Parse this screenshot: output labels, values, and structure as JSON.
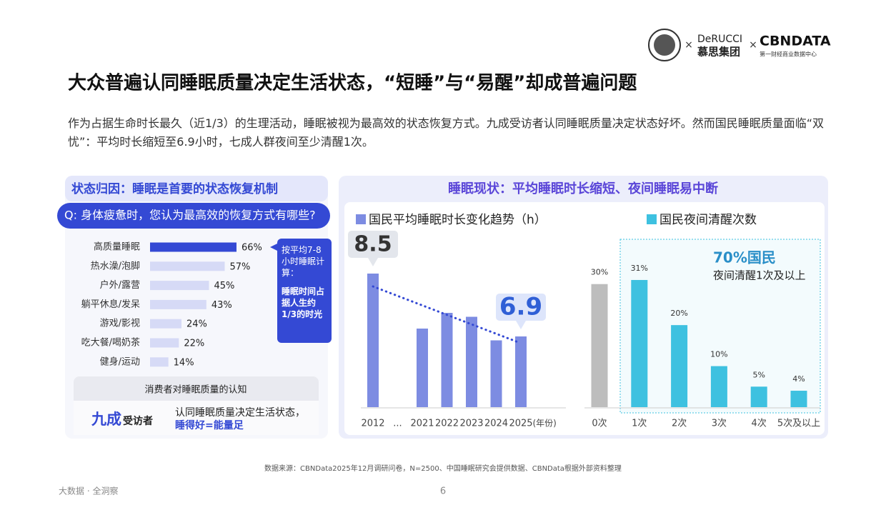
{
  "header": {
    "brand1": "DeRUCCI",
    "brand1_cn": "慕思集团",
    "separator": "×",
    "brand2": "CBNDATA",
    "brand2_sub": "第一财经商业数据中心",
    "title": "大众普遍认同睡眠质量决定生活状态，“短睡”与“易醒”却成普遍问题",
    "intro": "作为占据生命时长最久（近1/3）的生理活动，睡眠被视为最高效的状态恢复方式。九成受访者认同睡眠质量决定状态好坏。然而国民睡眠质量面临“双忧”：平均时长缩短至6.9小时，七成人群夜间至少清醒1次。"
  },
  "left_panel": {
    "heading": "状态归因：睡眠是首要的状态恢复机制",
    "note": [
      "按平均7-8小时睡眠计算：",
      "睡眠时间占据人生约1/3的时光"
    ],
    "summary": {
      "title": "消费者对睡眠质量的认知",
      "big": "九成",
      "big_suffix": "受访者",
      "line1": "认同睡眠质量决定生活状态，",
      "line2": "睡得好=能量足"
    }
  },
  "right_panel": {
    "heading": "睡眠现状：平均睡眠时长缩短、夜间睡眠易中断"
  },
  "chart_data": [
    {
      "type": "hbar",
      "title": "Q: 身体疲惫时，您认为最高效的恢复方式有哪些?",
      "categories": [
        "高质量睡眠",
        "热水澡/泡脚",
        "户外/露营",
        "躺平休息/发呆",
        "游戏/影视",
        "吃大餐/喝奶茶",
        "健身/运动"
      ],
      "values": [
        66,
        57,
        45,
        43,
        24,
        22,
        14
      ],
      "value_labels": [
        "66%",
        "57%",
        "45%",
        "43%",
        "24%",
        "22%",
        "14%"
      ],
      "colors": [
        "#3449d4",
        "#d6daf6",
        "#d6daf6",
        "#d6daf6",
        "#d6daf6",
        "#d6daf6",
        "#d6daf6"
      ]
    },
    {
      "type": "bar",
      "title": "国民平均睡眠时长变化趋势（h）",
      "categories": [
        "2012",
        "...",
        "2021",
        "2022",
        "2023",
        "2024",
        "2025"
      ],
      "values": [
        8.5,
        null,
        7.1,
        7.5,
        7.4,
        6.8,
        6.9
      ],
      "value_labels": [
        "8.5",
        null,
        null,
        null,
        null,
        null,
        "6.9"
      ],
      "x_unit": "(年份)",
      "color": "#7d8ce2",
      "ylim": [
        5.1,
        9
      ],
      "trend_line": true
    },
    {
      "type": "bar",
      "title": "国民夜间清醒次数",
      "categories": [
        "0次",
        "1次",
        "2次",
        "3次",
        "4次",
        "5次及以上"
      ],
      "values": [
        30,
        31,
        20,
        10,
        5,
        4
      ],
      "value_labels": [
        "30%",
        "31%",
        "20%",
        "10%",
        "5%",
        "4%"
      ],
      "colors": [
        "#bdbdbd",
        "#3ec1e0",
        "#3ec1e0",
        "#3ec1e0",
        "#3ec1e0",
        "#3ec1e0"
      ],
      "color": "#3ec1e0",
      "ylim": [
        0,
        35
      ],
      "highlight": {
        "label": "70%国民",
        "text": "夜间清醒1次及以上"
      }
    }
  ],
  "footer": {
    "source": "数据来源：CBNData2025年12月调研问卷，N=2500、中国睡眠研究会提供数据、CBNData根据外部资料整理",
    "left": "大数据 · 全洞察",
    "page": "6"
  }
}
